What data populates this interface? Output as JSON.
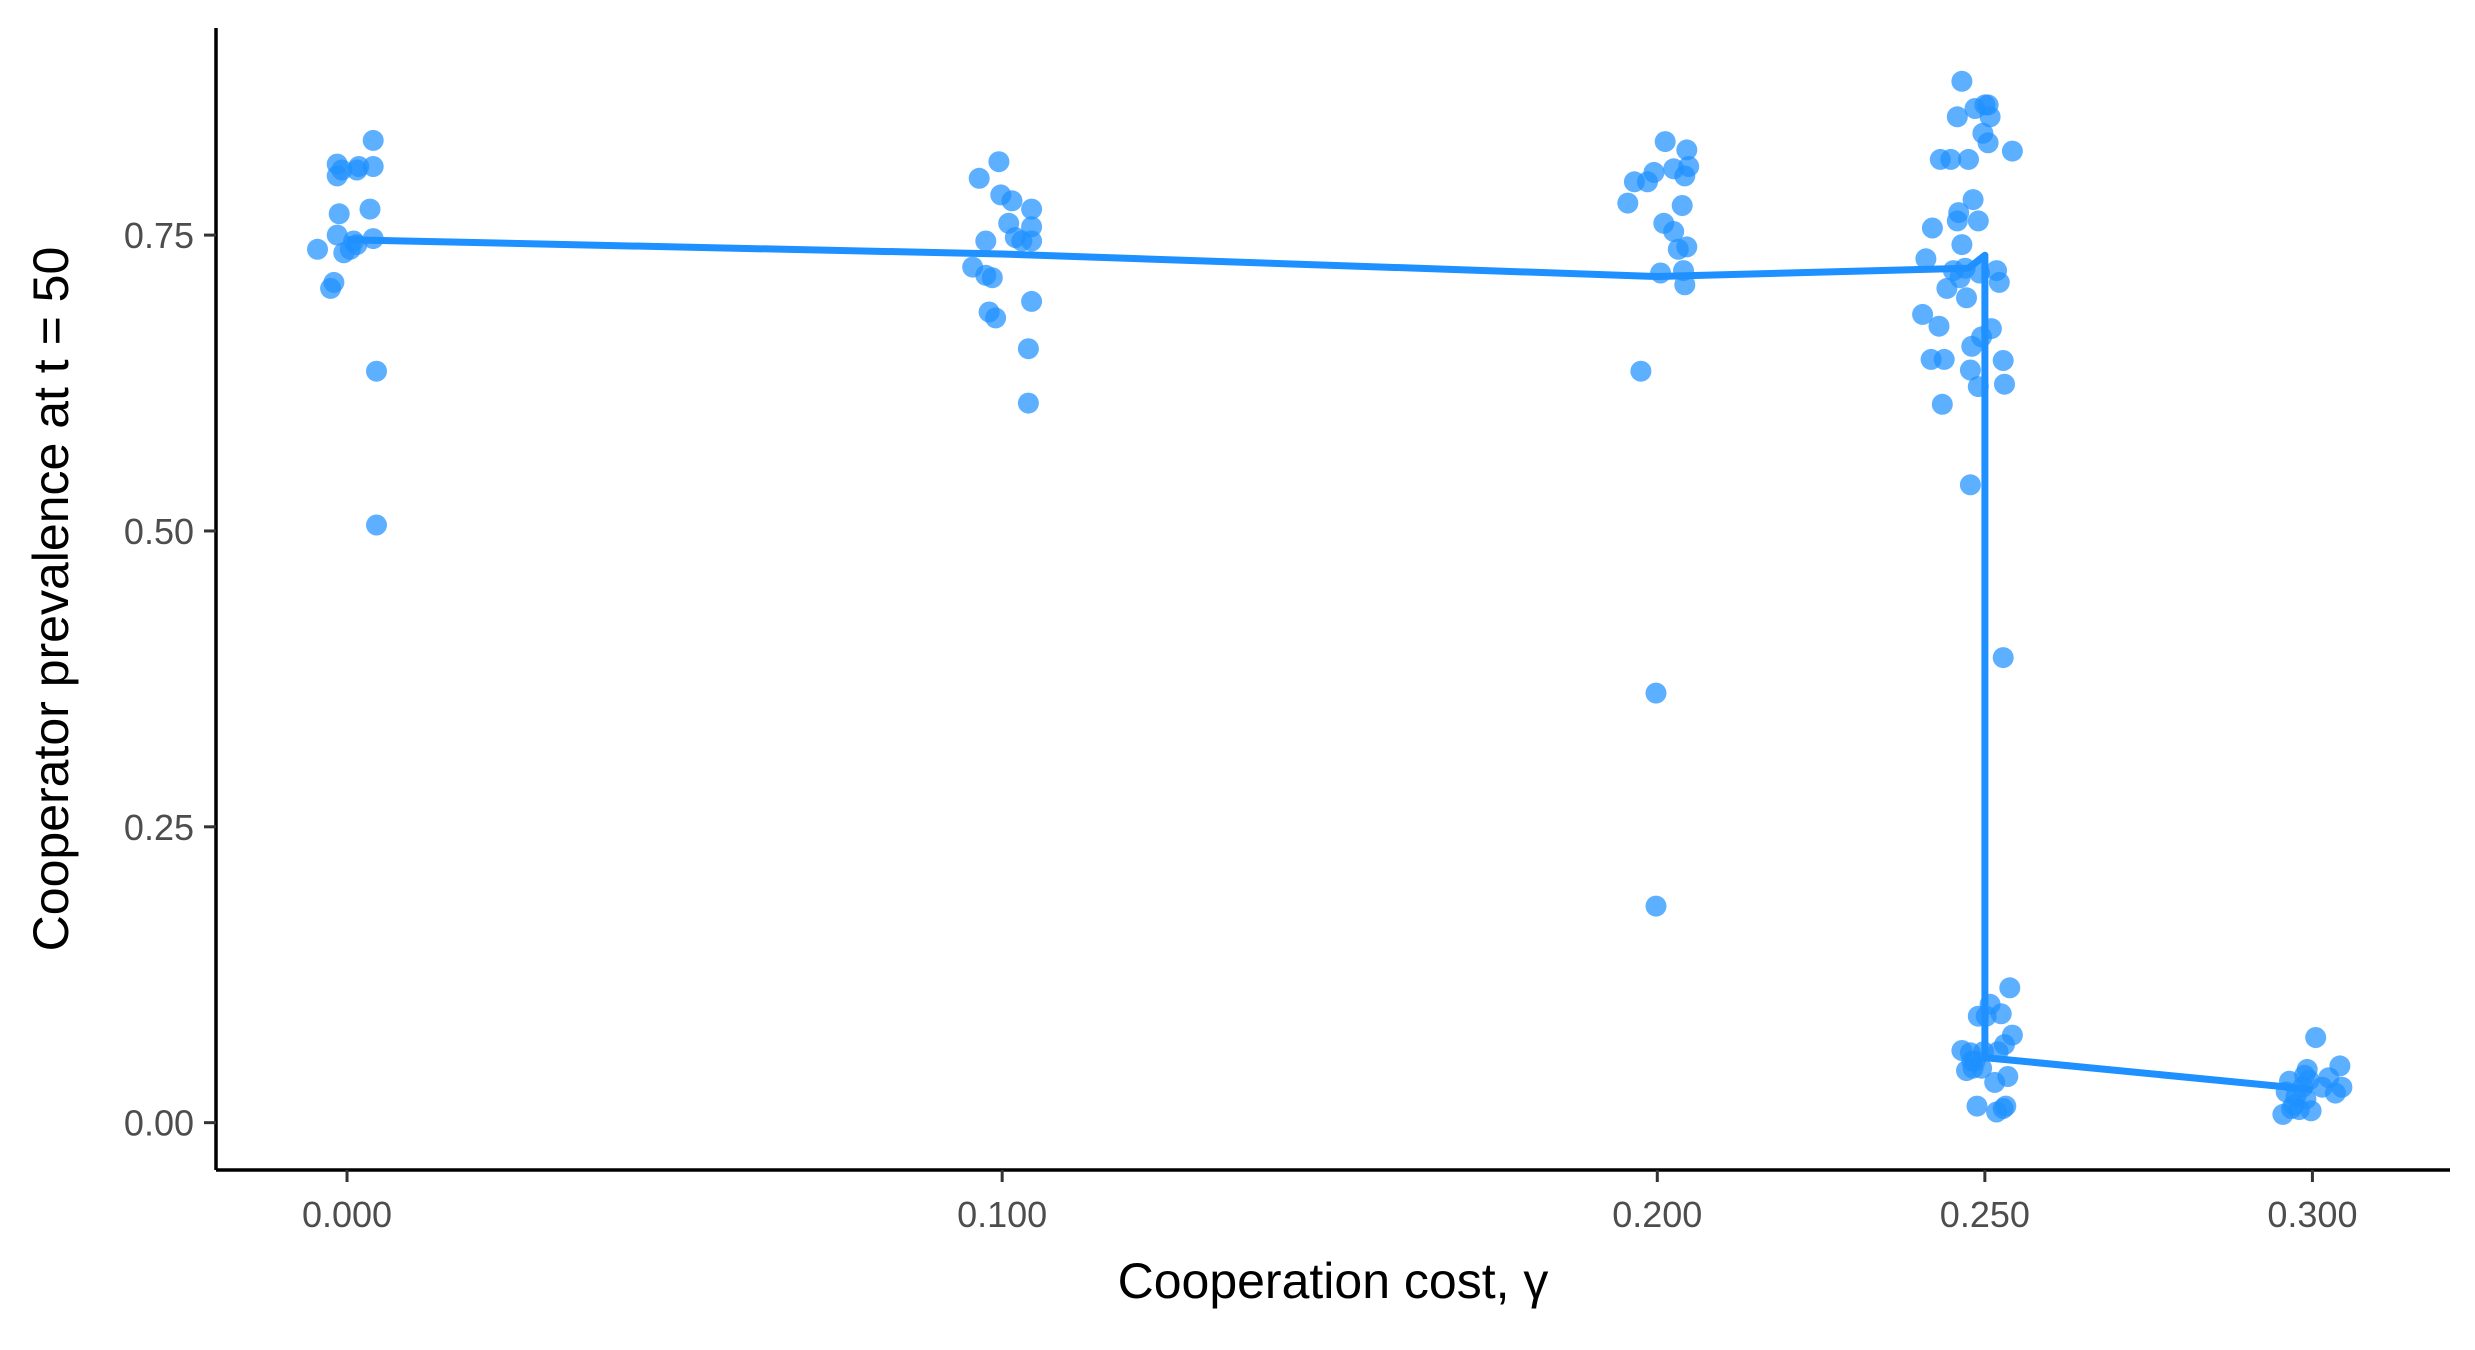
{
  "chart_data": {
    "type": "scatter",
    "title": "",
    "xlabel": "Cooperation cost, γ",
    "ylabel": "Cooperator prevalence at t = 50",
    "xlim": [
      -0.02,
      0.321
    ],
    "ylim": [
      -0.04,
      0.925
    ],
    "grid": false,
    "legend": "none",
    "x_ticks": [
      0.0,
      0.1,
      0.2,
      0.25,
      0.3
    ],
    "x_tick_labels": [
      "0.000",
      "0.100",
      "0.200",
      "0.250",
      "0.300"
    ],
    "y_ticks": [
      0.0,
      0.25,
      0.5,
      0.75
    ],
    "y_tick_labels": [
      "0.00",
      "0.25",
      "0.50",
      "0.75"
    ],
    "colors": {
      "points": "#1E90FF",
      "line": "#1E90FF"
    },
    "point_opacity": 0.72,
    "points": [
      {
        "x": -0.0045,
        "y": 0.738
      },
      {
        "x": -0.0025,
        "y": 0.705
      },
      {
        "x": -0.002,
        "y": 0.71
      },
      {
        "x": -0.0015,
        "y": 0.75
      },
      {
        "x": -0.0015,
        "y": 0.8
      },
      {
        "x": -0.0015,
        "y": 0.81
      },
      {
        "x": -0.0012,
        "y": 0.768
      },
      {
        "x": -0.0008,
        "y": 0.805
      },
      {
        "x": -0.0005,
        "y": 0.735
      },
      {
        "x": 0.0005,
        "y": 0.738
      },
      {
        "x": 0.001,
        "y": 0.745
      },
      {
        "x": 0.0015,
        "y": 0.742
      },
      {
        "x": 0.0015,
        "y": 0.805
      },
      {
        "x": 0.0018,
        "y": 0.808
      },
      {
        "x": 0.0035,
        "y": 0.772
      },
      {
        "x": 0.004,
        "y": 0.808
      },
      {
        "x": 0.004,
        "y": 0.83
      },
      {
        "x": 0.004,
        "y": 0.747
      },
      {
        "x": 0.0045,
        "y": 0.635
      },
      {
        "x": 0.0045,
        "y": 0.505
      },
      {
        "x": 0.0955,
        "y": 0.723
      },
      {
        "x": 0.0965,
        "y": 0.798
      },
      {
        "x": 0.0975,
        "y": 0.716
      },
      {
        "x": 0.0975,
        "y": 0.745
      },
      {
        "x": 0.098,
        "y": 0.685
      },
      {
        "x": 0.0985,
        "y": 0.714
      },
      {
        "x": 0.099,
        "y": 0.68
      },
      {
        "x": 0.0995,
        "y": 0.812
      },
      {
        "x": 0.0998,
        "y": 0.784
      },
      {
        "x": 0.101,
        "y": 0.76
      },
      {
        "x": 0.1015,
        "y": 0.779
      },
      {
        "x": 0.102,
        "y": 0.748
      },
      {
        "x": 0.103,
        "y": 0.745
      },
      {
        "x": 0.104,
        "y": 0.654
      },
      {
        "x": 0.104,
        "y": 0.608
      },
      {
        "x": 0.1045,
        "y": 0.772
      },
      {
        "x": 0.1045,
        "y": 0.757
      },
      {
        "x": 0.1045,
        "y": 0.745
      },
      {
        "x": 0.1045,
        "y": 0.694
      },
      {
        "x": 0.1955,
        "y": 0.777
      },
      {
        "x": 0.1965,
        "y": 0.795
      },
      {
        "x": 0.1975,
        "y": 0.635
      },
      {
        "x": 0.1985,
        "y": 0.795
      },
      {
        "x": 0.1995,
        "y": 0.803
      },
      {
        "x": 0.1998,
        "y": 0.363
      },
      {
        "x": 0.1998,
        "y": 0.183
      },
      {
        "x": 0.2005,
        "y": 0.718
      },
      {
        "x": 0.201,
        "y": 0.76
      },
      {
        "x": 0.2012,
        "y": 0.829
      },
      {
        "x": 0.2025,
        "y": 0.753
      },
      {
        "x": 0.2025,
        "y": 0.806
      },
      {
        "x": 0.2032,
        "y": 0.738
      },
      {
        "x": 0.2038,
        "y": 0.775
      },
      {
        "x": 0.204,
        "y": 0.72
      },
      {
        "x": 0.2042,
        "y": 0.708
      },
      {
        "x": 0.2042,
        "y": 0.8
      },
      {
        "x": 0.2045,
        "y": 0.822
      },
      {
        "x": 0.2045,
        "y": 0.74
      },
      {
        "x": 0.2048,
        "y": 0.808
      },
      {
        "x": 0.2405,
        "y": 0.683
      },
      {
        "x": 0.241,
        "y": 0.73
      },
      {
        "x": 0.2418,
        "y": 0.645
      },
      {
        "x": 0.242,
        "y": 0.756
      },
      {
        "x": 0.243,
        "y": 0.673
      },
      {
        "x": 0.2432,
        "y": 0.814
      },
      {
        "x": 0.2435,
        "y": 0.607
      },
      {
        "x": 0.2438,
        "y": 0.645
      },
      {
        "x": 0.2442,
        "y": 0.705
      },
      {
        "x": 0.2448,
        "y": 0.814
      },
      {
        "x": 0.2452,
        "y": 0.72
      },
      {
        "x": 0.2458,
        "y": 0.85
      },
      {
        "x": 0.2458,
        "y": 0.762
      },
      {
        "x": 0.246,
        "y": 0.769
      },
      {
        "x": 0.2462,
        "y": 0.714
      },
      {
        "x": 0.2465,
        "y": 0.742
      },
      {
        "x": 0.2465,
        "y": 0.88
      },
      {
        "x": 0.247,
        "y": 0.722
      },
      {
        "x": 0.2472,
        "y": 0.697
      },
      {
        "x": 0.2475,
        "y": 0.814
      },
      {
        "x": 0.2478,
        "y": 0.636
      },
      {
        "x": 0.2478,
        "y": 0.539
      },
      {
        "x": 0.248,
        "y": 0.656
      },
      {
        "x": 0.2482,
        "y": 0.78
      },
      {
        "x": 0.2485,
        "y": 0.857
      },
      {
        "x": 0.249,
        "y": 0.762
      },
      {
        "x": 0.249,
        "y": 0.622
      },
      {
        "x": 0.2492,
        "y": 0.718
      },
      {
        "x": 0.2495,
        "y": 0.664
      },
      {
        "x": 0.2497,
        "y": 0.836
      },
      {
        "x": 0.25,
        "y": 0.86
      },
      {
        "x": 0.2505,
        "y": 0.86
      },
      {
        "x": 0.2505,
        "y": 0.828
      },
      {
        "x": 0.2508,
        "y": 0.85
      },
      {
        "x": 0.251,
        "y": 0.671
      },
      {
        "x": 0.2518,
        "y": 0.72
      },
      {
        "x": 0.2522,
        "y": 0.71
      },
      {
        "x": 0.2528,
        "y": 0.393
      },
      {
        "x": 0.2528,
        "y": 0.644
      },
      {
        "x": 0.253,
        "y": 0.624
      },
      {
        "x": 0.2542,
        "y": 0.821
      },
      {
        "x": 0.2465,
        "y": 0.061
      },
      {
        "x": 0.2472,
        "y": 0.044
      },
      {
        "x": 0.2478,
        "y": 0.059
      },
      {
        "x": 0.248,
        "y": 0.052
      },
      {
        "x": 0.2482,
        "y": 0.046
      },
      {
        "x": 0.2485,
        "y": 0.052
      },
      {
        "x": 0.2488,
        "y": 0.014
      },
      {
        "x": 0.249,
        "y": 0.09
      },
      {
        "x": 0.2495,
        "y": 0.046
      },
      {
        "x": 0.2498,
        "y": 0.06
      },
      {
        "x": 0.2502,
        "y": 0.09
      },
      {
        "x": 0.2508,
        "y": 0.1
      },
      {
        "x": 0.2515,
        "y": 0.034
      },
      {
        "x": 0.2518,
        "y": 0.009
      },
      {
        "x": 0.252,
        "y": 0.06
      },
      {
        "x": 0.2525,
        "y": 0.092
      },
      {
        "x": 0.2528,
        "y": 0.012
      },
      {
        "x": 0.253,
        "y": 0.066
      },
      {
        "x": 0.2532,
        "y": 0.014
      },
      {
        "x": 0.2535,
        "y": 0.039
      },
      {
        "x": 0.2538,
        "y": 0.114
      },
      {
        "x": 0.2542,
        "y": 0.074
      },
      {
        "x": 0.2955,
        "y": 0.007
      },
      {
        "x": 0.296,
        "y": 0.026
      },
      {
        "x": 0.2965,
        "y": 0.035
      },
      {
        "x": 0.2968,
        "y": 0.012
      },
      {
        "x": 0.2972,
        "y": 0.015
      },
      {
        "x": 0.2975,
        "y": 0.022
      },
      {
        "x": 0.298,
        "y": 0.011
      },
      {
        "x": 0.2985,
        "y": 0.03
      },
      {
        "x": 0.2988,
        "y": 0.04
      },
      {
        "x": 0.299,
        "y": 0.02
      },
      {
        "x": 0.2992,
        "y": 0.045
      },
      {
        "x": 0.2995,
        "y": 0.036
      },
      {
        "x": 0.2998,
        "y": 0.01
      },
      {
        "x": 0.3005,
        "y": 0.072
      },
      {
        "x": 0.3015,
        "y": 0.03
      },
      {
        "x": 0.3025,
        "y": 0.038
      },
      {
        "x": 0.3035,
        "y": 0.025
      },
      {
        "x": 0.3042,
        "y": 0.048
      },
      {
        "x": 0.3045,
        "y": 0.03
      }
    ],
    "line": [
      {
        "x": 0.0,
        "y": 0.746
      },
      {
        "x": 0.1,
        "y": 0.734
      },
      {
        "x": 0.2,
        "y": 0.715
      },
      {
        "x": 0.2475,
        "y": 0.722
      },
      {
        "x": 0.25,
        "y": 0.733
      },
      {
        "x": 0.25,
        "y": 0.055
      },
      {
        "x": 0.3,
        "y": 0.028
      }
    ]
  }
}
